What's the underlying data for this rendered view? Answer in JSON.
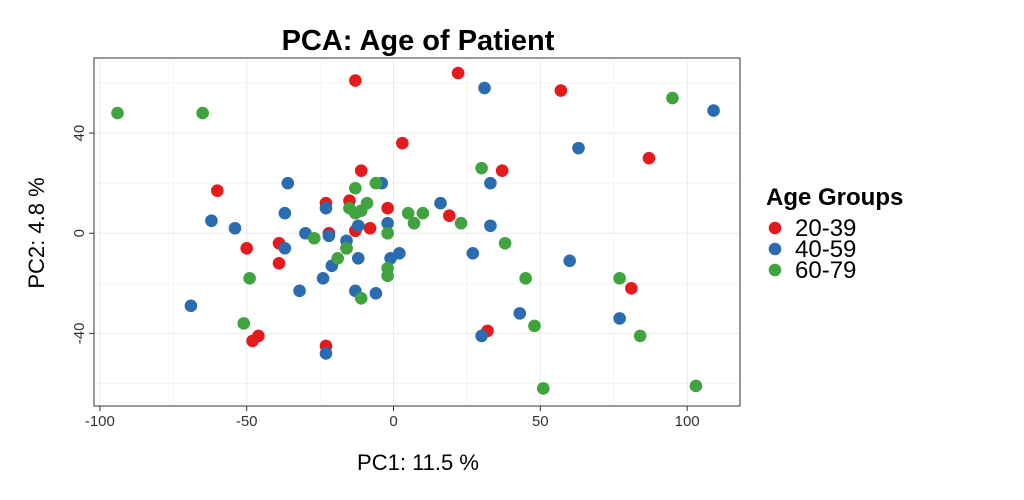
{
  "chart_data": {
    "type": "scatter",
    "title": "PCA: Age of Patient",
    "xlabel": "PC1: 11.5 %",
    "ylabel": "PC2: 4.8 %",
    "xlim": [
      -102,
      118
    ],
    "ylim": [
      -69,
      70
    ],
    "x_ticks": [
      -100,
      -50,
      0,
      50,
      100
    ],
    "y_ticks": [
      -40,
      0,
      40
    ],
    "grid": true,
    "legend": {
      "title": "Age Groups",
      "placement": "right"
    },
    "series": [
      {
        "name": "20-39",
        "color": "#e41a1c",
        "points": [
          [
            -13,
            61
          ],
          [
            22,
            64
          ],
          [
            57,
            57
          ],
          [
            87,
            30
          ],
          [
            3,
            36
          ],
          [
            -11,
            25
          ],
          [
            37,
            25
          ],
          [
            -60,
            17
          ],
          [
            -23,
            12
          ],
          [
            -15,
            13
          ],
          [
            -2,
            10
          ],
          [
            19,
            7
          ],
          [
            -8,
            2
          ],
          [
            -13,
            1
          ],
          [
            -22,
            0
          ],
          [
            -50,
            -6
          ],
          [
            -16,
            -6
          ],
          [
            -39,
            -4
          ],
          [
            -39,
            -12
          ],
          [
            81,
            -22
          ],
          [
            32,
            -39
          ],
          [
            -46,
            -41
          ],
          [
            -48,
            -43
          ],
          [
            -23,
            -45
          ]
        ]
      },
      {
        "name": "40-59",
        "color": "#2b6cb1",
        "points": [
          [
            31,
            58
          ],
          [
            109,
            49
          ],
          [
            63,
            34
          ],
          [
            -36,
            20
          ],
          [
            -4,
            20
          ],
          [
            33,
            20
          ],
          [
            16,
            12
          ],
          [
            -23,
            10
          ],
          [
            -37,
            8
          ],
          [
            -62,
            5
          ],
          [
            -2,
            4
          ],
          [
            -12,
            3
          ],
          [
            33,
            3
          ],
          [
            -54,
            2
          ],
          [
            -30,
            0
          ],
          [
            -22,
            -1
          ],
          [
            -16,
            -3
          ],
          [
            2,
            -8
          ],
          [
            27,
            -8
          ],
          [
            -1,
            -10
          ],
          [
            -12,
            -10
          ],
          [
            60,
            -11
          ],
          [
            -21,
            -13
          ],
          [
            -37,
            -6
          ],
          [
            -24,
            -18
          ],
          [
            -32,
            -23
          ],
          [
            -13,
            -23
          ],
          [
            -6,
            -24
          ],
          [
            -69,
            -29
          ],
          [
            43,
            -32
          ],
          [
            77,
            -34
          ],
          [
            30,
            -41
          ],
          [
            -23,
            -48
          ]
        ]
      },
      {
        "name": "60-79",
        "color": "#41a33f",
        "points": [
          [
            -94,
            48
          ],
          [
            -65,
            48
          ],
          [
            95,
            54
          ],
          [
            30,
            26
          ],
          [
            -6,
            20
          ],
          [
            -13,
            18
          ],
          [
            -9,
            12
          ],
          [
            -15,
            10
          ],
          [
            -13,
            8
          ],
          [
            -11,
            9
          ],
          [
            5,
            8
          ],
          [
            10,
            8
          ],
          [
            7,
            4
          ],
          [
            23,
            4
          ],
          [
            -2,
            0
          ],
          [
            -27,
            -2
          ],
          [
            38,
            -4
          ],
          [
            -16,
            -6
          ],
          [
            -19,
            -10
          ],
          [
            -2,
            -14
          ],
          [
            -2,
            -17
          ],
          [
            -49,
            -18
          ],
          [
            45,
            -18
          ],
          [
            77,
            -18
          ],
          [
            -11,
            -26
          ],
          [
            -51,
            -36
          ],
          [
            48,
            -37
          ],
          [
            84,
            -41
          ],
          [
            51,
            -62
          ],
          [
            103,
            -61
          ]
        ]
      }
    ]
  }
}
